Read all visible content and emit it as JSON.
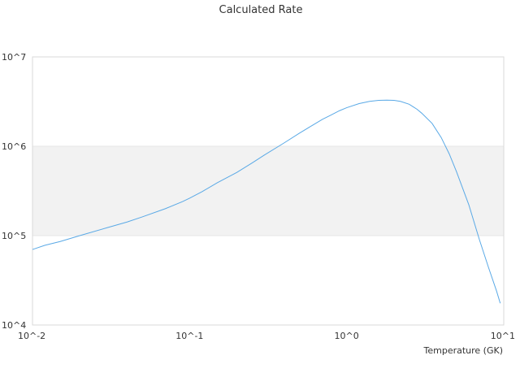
{
  "chart_data": {
    "type": "line",
    "title": "Calculated Rate",
    "xlabel": "Temperature (GK)",
    "ylabel": "",
    "x_scale": "log",
    "y_scale": "log",
    "xlim": [
      0.01,
      10
    ],
    "ylim": [
      10000,
      10000000
    ],
    "x_tick_labels": [
      "10^-2",
      "10^-1",
      "10^0",
      "10^1"
    ],
    "y_tick_labels": [
      "10^4",
      "10^5",
      "10^6",
      "10^7"
    ],
    "band": {
      "from": 100000,
      "to": 1000000,
      "color": "#f2f2f2"
    },
    "grid": true,
    "legend": "none",
    "series": [
      {
        "color": "#5aa9e6",
        "x": [
          0.01,
          0.012,
          0.015,
          0.02,
          0.03,
          0.04,
          0.05,
          0.07,
          0.09,
          0.1,
          0.12,
          0.15,
          0.2,
          0.25,
          0.3,
          0.4,
          0.5,
          0.6,
          0.7,
          0.8,
          0.9,
          1.0,
          1.2,
          1.4,
          1.6,
          1.8,
          2.0,
          2.2,
          2.5,
          2.8,
          3.0,
          3.5,
          4.0,
          4.5,
          5.0,
          6.0,
          7.0,
          8.0,
          9.0,
          9.5
        ],
        "y": [
          70000,
          78000,
          86000,
          100000,
          123000,
          142000,
          162000,
          200000,
          240000,
          262000,
          310000,
          390000,
          510000,
          650000,
          800000,
          1090000,
          1400000,
          1700000,
          2000000,
          2250000,
          2500000,
          2700000,
          3000000,
          3180000,
          3260000,
          3280000,
          3260000,
          3180000,
          2950000,
          2600000,
          2350000,
          1800000,
          1250000,
          820000,
          520000,
          220000,
          90000,
          44000,
          24000,
          17500
        ]
      }
    ]
  }
}
